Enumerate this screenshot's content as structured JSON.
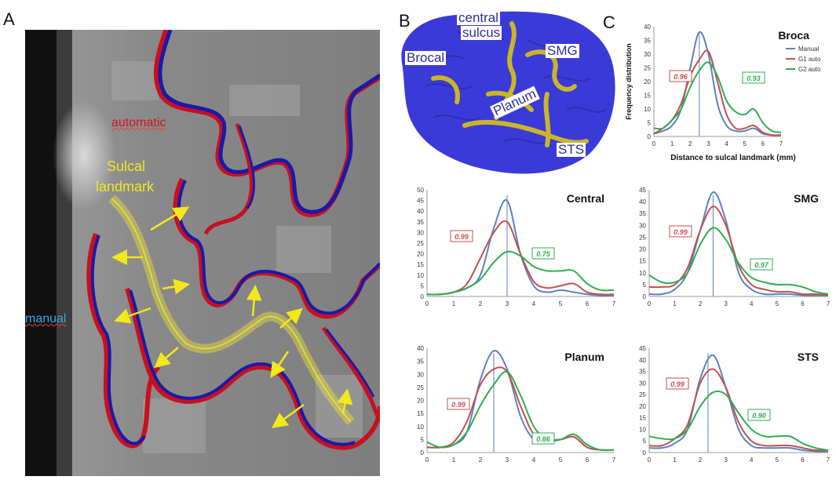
{
  "panels": {
    "a": "A",
    "b": "B",
    "c": "C"
  },
  "mri": {
    "automatic_label": "automatic",
    "sulcal_label_line1": "Sulcal",
    "sulcal_label_line2": "landmark",
    "manual_label": "manual",
    "colors": {
      "automatic": "#c8101e",
      "manual": "#1a1aa8",
      "landmark": "#e8e23a",
      "arrow": "#f2e81a"
    }
  },
  "brain": {
    "labels": {
      "central_line1": "central",
      "central_line2": "sulcus",
      "broca": "Brocal",
      "smg": "SMG",
      "planum": "Planum",
      "sts": "STS"
    },
    "colors": {
      "surface": "#3a3ad8",
      "sulcus": "#c9b52a"
    }
  },
  "chart_data": [
    {
      "type": "line",
      "title": "Broca",
      "ylabel": "Frequency distribution",
      "xlabel": "Distance to sulcal landmark (mm)",
      "xlim": [
        0,
        7
      ],
      "ylim": [
        0,
        40
      ],
      "yticks": [
        0,
        5,
        10,
        15,
        20,
        25,
        30,
        35,
        40
      ],
      "xticks": [
        0,
        1,
        2,
        3,
        4,
        5,
        6,
        7
      ],
      "legend": [
        "Manual",
        "G1 auto",
        "G2 auto"
      ],
      "annotations": {
        "g1": "0.96",
        "g2": "0.93"
      },
      "vline": 2.5,
      "x": [
        0,
        0.5,
        1,
        1.5,
        2,
        2.5,
        3,
        3.5,
        4,
        4.5,
        5,
        5.5,
        6,
        6.5,
        7
      ],
      "series": [
        {
          "name": "Manual",
          "values": [
            1,
            2,
            4,
            10,
            25,
            38,
            30,
            12,
            4,
            2,
            2,
            3,
            1,
            0.5,
            0.5
          ]
        },
        {
          "name": "G1 auto",
          "values": [
            1,
            3,
            6,
            12,
            22,
            28,
            31,
            20,
            8,
            3,
            3,
            4,
            1.5,
            0.5,
            0.5
          ]
        },
        {
          "name": "G2 auto",
          "values": [
            3,
            3,
            6,
            10,
            18,
            24,
            27,
            22,
            13,
            9,
            8,
            10,
            5,
            2,
            1.5
          ]
        }
      ]
    },
    {
      "type": "line",
      "title": "Central",
      "xlim": [
        0,
        7
      ],
      "ylim": [
        0,
        50
      ],
      "yticks": [
        0,
        5,
        10,
        15,
        20,
        25,
        30,
        35,
        40,
        45,
        50
      ],
      "xticks": [
        0,
        1,
        2,
        3,
        4,
        5,
        6,
        7
      ],
      "annotations": {
        "g1": "0.99",
        "g2": "0.75"
      },
      "vline": 3.0,
      "x": [
        0,
        0.5,
        1,
        1.5,
        2,
        2.5,
        3,
        3.5,
        4,
        4.5,
        5,
        5.5,
        6,
        6.5,
        7
      ],
      "series": [
        {
          "name": "Manual",
          "values": [
            1,
            1,
            2,
            4,
            10,
            32,
            45,
            20,
            5,
            2,
            3,
            2,
            1,
            0.5,
            0.5
          ]
        },
        {
          "name": "G1 auto",
          "values": [
            1,
            1,
            2,
            6,
            18,
            30,
            35,
            20,
            7,
            4,
            5,
            6,
            2,
            1,
            1
          ]
        },
        {
          "name": "G2 auto",
          "values": [
            1,
            1,
            2,
            4,
            8,
            16,
            21,
            19,
            14,
            12,
            12,
            12,
            6,
            3,
            3
          ]
        }
      ]
    },
    {
      "type": "line",
      "title": "SMG",
      "xlim": [
        0,
        7
      ],
      "ylim": [
        0,
        45
      ],
      "yticks": [
        0,
        5,
        10,
        15,
        20,
        25,
        30,
        35,
        40,
        45
      ],
      "xticks": [
        0,
        1,
        2,
        3,
        4,
        5,
        6,
        7
      ],
      "annotations": {
        "g1": "0.99",
        "g2": "0.97"
      },
      "vline": 2.5,
      "x": [
        0,
        0.5,
        1,
        1.5,
        2,
        2.5,
        3,
        3.5,
        4,
        4.5,
        5,
        5.5,
        6,
        6.5,
        7
      ],
      "series": [
        {
          "name": "Manual",
          "values": [
            1,
            1,
            3,
            10,
            28,
            44,
            32,
            10,
            3,
            1,
            1,
            1,
            0.5,
            0.5,
            0.5
          ]
        },
        {
          "name": "G1 auto",
          "values": [
            4,
            4,
            5,
            12,
            28,
            38,
            30,
            13,
            5,
            3,
            2,
            2,
            1,
            1,
            0.5
          ]
        },
        {
          "name": "G2 auto",
          "values": [
            9,
            6,
            6,
            10,
            22,
            29,
            24,
            14,
            8,
            6,
            5,
            5,
            4,
            2,
            1
          ]
        }
      ]
    },
    {
      "type": "line",
      "title": "Planum",
      "xlim": [
        0,
        7
      ],
      "ylim": [
        0,
        40
      ],
      "yticks": [
        0,
        5,
        10,
        15,
        20,
        25,
        30,
        35,
        40
      ],
      "xticks": [
        0,
        1,
        2,
        3,
        4,
        5,
        6,
        7
      ],
      "annotations": {
        "g1": "0.99",
        "g2": "0.86"
      },
      "vline": 2.5,
      "x": [
        0,
        0.5,
        1,
        1.5,
        2,
        2.5,
        3,
        3.5,
        4,
        4.5,
        5,
        5.5,
        6,
        6.5,
        7
      ],
      "series": [
        {
          "name": "Manual",
          "values": [
            2,
            2,
            3,
            8,
            28,
            39,
            32,
            14,
            5,
            4,
            5,
            6,
            2,
            1,
            1
          ]
        },
        {
          "name": "G1 auto",
          "values": [
            2,
            2,
            4,
            12,
            26,
            32,
            31,
            18,
            7,
            5,
            5,
            6,
            2,
            1,
            1
          ]
        },
        {
          "name": "G2 auto",
          "values": [
            4,
            2,
            3,
            8,
            18,
            26,
            31,
            22,
            10,
            5,
            5,
            7,
            3,
            1,
            1
          ]
        }
      ]
    },
    {
      "type": "line",
      "title": "STS",
      "xlim": [
        0,
        7
      ],
      "ylim": [
        0,
        45
      ],
      "yticks": [
        0,
        5,
        10,
        15,
        20,
        25,
        30,
        35,
        40,
        45
      ],
      "xticks": [
        0,
        1,
        2,
        3,
        4,
        5,
        6,
        7
      ],
      "annotations": {
        "g1": "0.99",
        "g2": "0.90"
      },
      "vline": 2.3,
      "x": [
        0,
        0.5,
        1,
        1.5,
        2,
        2.5,
        3,
        3.5,
        4,
        4.5,
        5,
        5.5,
        6,
        6.5,
        7
      ],
      "series": [
        {
          "name": "Manual",
          "values": [
            2,
            2,
            4,
            10,
            32,
            42,
            28,
            10,
            3,
            2,
            2,
            2,
            1,
            0.5,
            0.5
          ]
        },
        {
          "name": "G1 auto",
          "values": [
            3,
            3,
            6,
            12,
            30,
            36,
            28,
            13,
            5,
            3,
            3,
            3,
            2,
            1,
            1
          ]
        },
        {
          "name": "G2 auto",
          "values": [
            7,
            6,
            6,
            10,
            20,
            26,
            25,
            17,
            10,
            7,
            7,
            7,
            4,
            2,
            1
          ]
        }
      ]
    }
  ],
  "colors": {
    "Manual": "#5a82c2",
    "G1 auto": "#c2504e",
    "G2 auto": "#2fae4f",
    "vline": "#5a82c2",
    "grid_axis": "#999999"
  }
}
